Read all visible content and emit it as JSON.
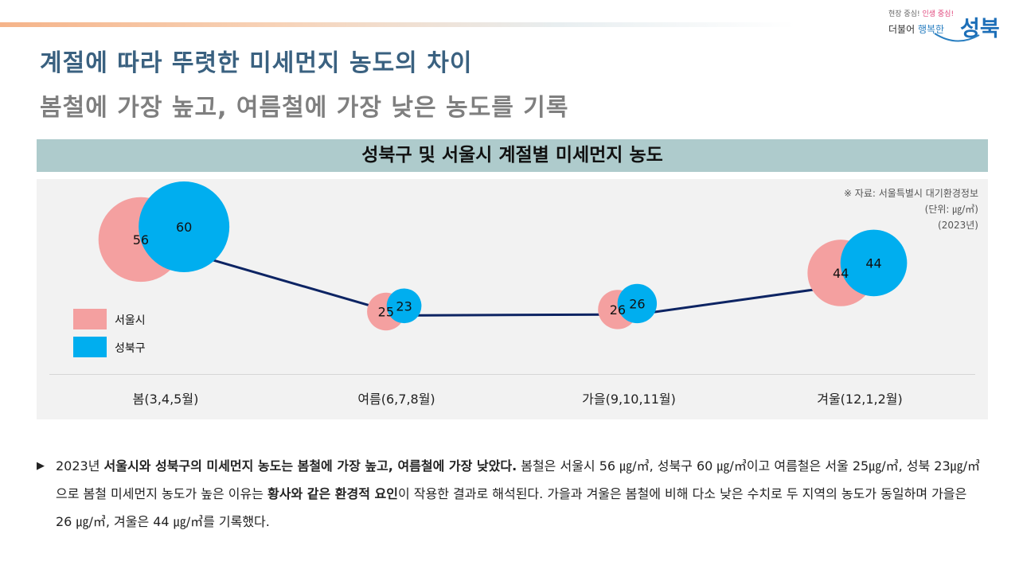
{
  "logo": {
    "slogan_a": "현장 중심!",
    "slogan_b": "인생 중심!",
    "sub_a": "더불어",
    "sub_b": "행복한",
    "main": "성북"
  },
  "title": {
    "line1": "계절에 따라 뚜렷한 미세먼지 농도의 차이",
    "line2": "봄철에 가장 높고, 여름철에 가장 낮은 농도를 기록"
  },
  "chart_header": "성북구 및 서울시 계절별 미세먼지 농도",
  "source": {
    "line1": "※ 자료: 서울특별시 대기환경정보",
    "line2": "(단위: ㎍/㎥)",
    "line3": "(2023년)"
  },
  "colors": {
    "seoul": "#f4a0a0",
    "seongbuk": "#00aeef",
    "line": "#0d2463"
  },
  "chart_data": {
    "type": "bubble",
    "title": "성북구 및 서울시 계절별 미세먼지 농도",
    "categories": [
      "봄(3,4,5월)",
      "여름(6,7,8월)",
      "가을(9,10,11월)",
      "겨울(12,1,2월)"
    ],
    "series": [
      {
        "name": "서울시",
        "values": [
          56,
          25,
          26,
          44
        ]
      },
      {
        "name": "성북구",
        "values": [
          60,
          23,
          26,
          44
        ]
      }
    ],
    "legend": "left"
  },
  "body": {
    "s1": "2023년 ",
    "b1": "서울시와 성북구의 미세먼지 농도는 봄철에 가장 높고, 여름철에 가장 낮았다.",
    "s2": " 봄철은 서울시 56 ㎍/㎥, 성북구 60 ㎍/㎥이고 여름철은 서울 25㎍/㎥, 성북 23㎍/㎥으로 봄철 미세먼지 농도가 높은 이유는 ",
    "b2": "황사와 같은 환경적 요인",
    "s3": "이 작용한 결과로 해석된다. 가을과 겨울은 봄철에 비해 다소 낮은 수치로 두 지역의 농도가 동일하며 가을은 26 ㎍/㎥, 겨울은 44 ㎍/㎥를 기록했다."
  }
}
